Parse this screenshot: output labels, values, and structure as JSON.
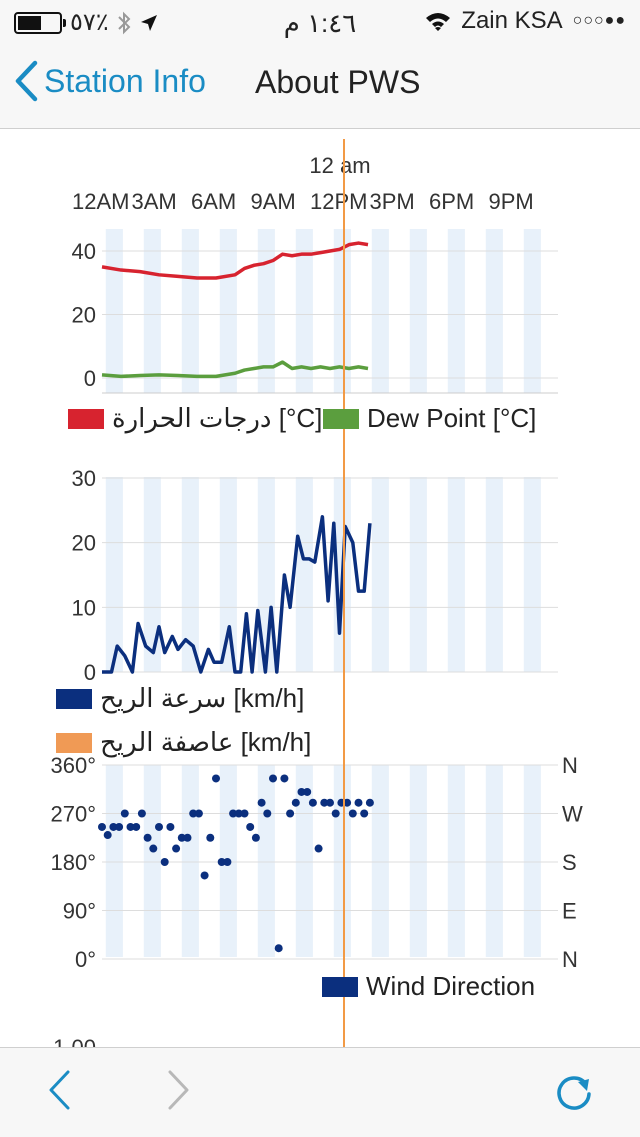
{
  "status_bar": {
    "battery_text": "٥٧٪",
    "battery_level": 0.57,
    "time": "١:٤٦ م",
    "carrier": "Zain KSA",
    "signal_dots": "○○○●●"
  },
  "nav": {
    "back_label": "Station Info",
    "title": "About PWS"
  },
  "timeline": {
    "now_label": "12 am",
    "hour_labels": [
      "12AM",
      "3AM",
      "6AM",
      "9AM",
      "12PM",
      "3PM",
      "6PM",
      "9PM"
    ]
  },
  "colors": {
    "accent": "#1a8cc4",
    "temperature": "#d7232f",
    "dew_point": "#5b9e3e",
    "wind_speed": "#0b2f7e",
    "wind_gust": "#f09a55",
    "now_line": "#f29a45",
    "band": "#e8f1fa"
  },
  "chart_data": [
    {
      "type": "line",
      "ylim": [
        0,
        45
      ],
      "y_ticks": [
        "40",
        "20",
        "0"
      ],
      "x_range_hours": [
        0,
        24
      ],
      "series": [
        {
          "name": "درجات الحرارة [°C]",
          "x": [
            0,
            1,
            2,
            3,
            4,
            5,
            6,
            7,
            7.5,
            8,
            8.5,
            9,
            9.5,
            10,
            10.5,
            11,
            11.5,
            12,
            12.5,
            13,
            13.5,
            14
          ],
          "y": [
            35,
            34,
            33.5,
            32.5,
            32,
            31.5,
            31.5,
            32.5,
            34.5,
            35.5,
            36,
            37,
            39,
            38.5,
            39,
            39,
            39.5,
            40,
            40.5,
            42,
            42.5,
            42
          ]
        },
        {
          "name": "Dew Point [°C]",
          "x": [
            0,
            1,
            2,
            3,
            4,
            5,
            6,
            7,
            7.5,
            8,
            8.5,
            9,
            9.5,
            10,
            10.5,
            11,
            11.5,
            12,
            12.5,
            13,
            13.5,
            14
          ],
          "y": [
            1,
            0.5,
            0.8,
            1,
            0.8,
            0.5,
            0.5,
            1.5,
            2.5,
            3,
            3.5,
            3.5,
            5,
            3,
            3.5,
            3,
            3.5,
            3,
            3.5,
            3,
            3.5,
            3
          ]
        }
      ]
    },
    {
      "type": "line",
      "ylim": [
        0,
        30
      ],
      "y_ticks": [
        "30",
        "20",
        "10",
        "0"
      ],
      "x_range_hours": [
        0,
        24
      ],
      "series": [
        {
          "name": "سرعة الريح [km/h]",
          "x": [
            0,
            0.5,
            0.8,
            1.2,
            1.6,
            1.9,
            2.3,
            2.7,
            3.0,
            3.3,
            3.7,
            4.0,
            4.4,
            4.8,
            5.2,
            5.6,
            5.9,
            6.3,
            6.7,
            7.0,
            7.3,
            7.6,
            7.9,
            8.2,
            8.6,
            8.9,
            9.2,
            9.6,
            9.9,
            10.3,
            10.6,
            10.9,
            11.2,
            11.6,
            11.9,
            12.2,
            12.5,
            12.8,
            13.2,
            13.5,
            13.8,
            14.1
          ],
          "y": [
            0,
            0,
            4,
            2.5,
            0,
            7.5,
            4,
            3,
            7,
            3,
            5.5,
            3.5,
            5,
            4,
            0,
            3.5,
            1.5,
            1.5,
            7,
            0,
            0,
            9,
            0,
            9.5,
            0,
            10,
            0,
            15,
            10,
            21,
            17.5,
            17.5,
            17,
            24,
            11,
            23,
            6,
            22.5,
            20,
            12.5,
            12.5,
            23
          ]
        },
        {
          "name": "عاصفة الريح [km/h]",
          "x": [],
          "y": []
        }
      ]
    },
    {
      "type": "scatter",
      "ylim": [
        0,
        360
      ],
      "y_ticks": [
        "360°",
        "270°",
        "180°",
        "90°",
        "0°"
      ],
      "compass_ticks": [
        "N",
        "W",
        "S",
        "E",
        "N"
      ],
      "x_range_hours": [
        0,
        24
      ],
      "series": [
        {
          "name": "Wind Direction",
          "x": [
            0,
            0.3,
            0.6,
            0.9,
            1.2,
            1.5,
            1.8,
            2.1,
            2.4,
            2.7,
            3.0,
            3.3,
            3.6,
            3.9,
            4.2,
            4.5,
            4.8,
            5.1,
            5.4,
            5.7,
            6.0,
            6.3,
            6.6,
            6.9,
            7.2,
            7.5,
            7.8,
            8.1,
            8.4,
            8.7,
            9.0,
            9.3,
            9.6,
            9.9,
            10.2,
            10.5,
            10.8,
            11.1,
            11.4,
            11.7,
            12.0,
            12.3,
            12.6,
            12.9,
            13.2,
            13.5,
            13.8,
            14.1
          ],
          "y": [
            245,
            230,
            245,
            245,
            270,
            245,
            245,
            270,
            225,
            205,
            245,
            180,
            245,
            205,
            225,
            225,
            270,
            270,
            155,
            225,
            335,
            180,
            180,
            270,
            270,
            270,
            245,
            225,
            290,
            270,
            335,
            20,
            335,
            270,
            290,
            310,
            310,
            290,
            205,
            290,
            290,
            270,
            290,
            290,
            270,
            290,
            270,
            290
          ]
        }
      ]
    },
    {
      "type": "line",
      "y_ticks": [
        "1.00"
      ],
      "series": []
    }
  ]
}
